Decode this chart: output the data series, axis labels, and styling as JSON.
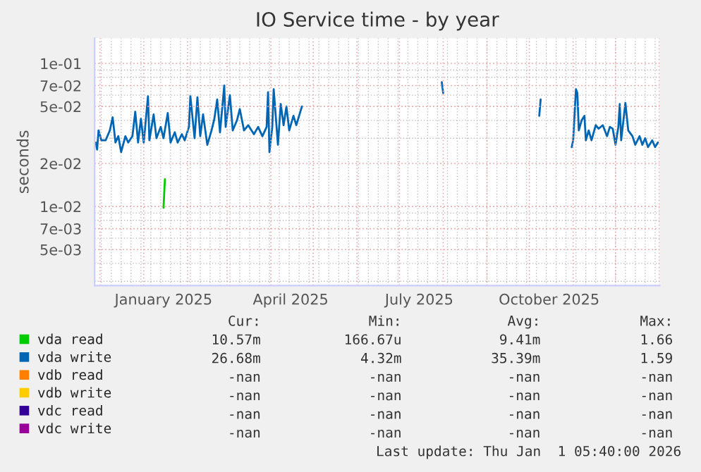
{
  "chart_data": {
    "type": "line",
    "title": "IO Service time - by year",
    "ylabel": "seconds",
    "log": "y",
    "grid": true,
    "legend": "bottom",
    "xlim": [
      "2024-11-27T05:40",
      "2026-01-01T05:40"
    ],
    "xticks": [
      {
        "value": "2025-01-15",
        "label": "January 2025"
      },
      {
        "value": "2025-04-15",
        "label": "April 2025"
      },
      {
        "value": "2025-07-15",
        "label": "July 2025"
      },
      {
        "value": "2025-10-15",
        "label": "October 2025"
      }
    ],
    "ylim": [
      0.0028,
      0.15
    ],
    "yticks": [
      {
        "value": 0.1,
        "label": "1e-01"
      },
      {
        "value": 0.07,
        "label": "7e-02"
      },
      {
        "value": 0.05,
        "label": "5e-02"
      },
      {
        "value": 0.02,
        "label": "2e-02"
      },
      {
        "value": 0.01,
        "label": "1e-02"
      },
      {
        "value": 0.007,
        "label": "7e-03"
      },
      {
        "value": 0.005,
        "label": "5e-03"
      }
    ],
    "series": [
      {
        "name": "vda read",
        "color": "#00cc00",
        "x": [
          "2025-01-15",
          "2025-01-16"
        ],
        "values": [
          0.0098,
          0.0155
        ]
      },
      {
        "name": "vda write",
        "color": "#0066b3",
        "x": [
          "2024-11-28",
          "2024-11-29",
          "2024-11-30",
          "2024-12-02",
          "2024-12-05",
          "2024-12-08",
          "2024-12-10",
          "2024-12-12",
          "2024-12-14",
          "2024-12-16",
          "2024-12-19",
          "2024-12-21",
          "2024-12-24",
          "2024-12-26",
          "2024-12-28",
          "2024-12-30",
          "2025-01-01",
          "2025-01-04",
          "2025-01-05",
          "2025-01-08",
          "2025-01-10",
          "2025-01-13",
          "2025-01-15",
          "2025-01-18",
          "2025-01-20",
          "2025-01-23",
          "2025-01-25",
          "2025-01-28",
          "2025-01-30",
          "2025-02-02",
          "2025-02-03",
          "2025-02-06",
          "2025-02-08",
          "2025-02-10",
          "2025-02-12",
          "2025-02-15",
          "2025-02-18",
          "2025-02-20",
          "2025-02-22",
          "2025-02-24",
          "2025-02-27",
          "2025-02-28",
          "2025-03-03",
          "2025-03-05",
          "2025-03-08",
          "2025-03-10",
          "2025-03-13",
          "2025-03-16",
          "2025-03-20",
          "2025-03-23",
          "2025-03-26",
          "2025-03-29",
          "2025-03-30",
          "2025-03-31",
          "2025-04-02",
          "2025-04-03",
          "2025-04-06",
          "2025-04-08",
          "2025-04-10",
          "2025-04-12",
          "2025-04-14",
          "2025-04-17",
          "2025-04-19",
          "2025-04-23",
          "2025-06-01",
          "2025-07-31",
          "2025-08-01",
          "2025-09-01",
          "2025-10-08",
          "2025-10-09",
          "2025-10-20",
          "2025-10-31",
          "2025-11-01",
          "2025-11-03",
          "2025-11-04",
          "2025-11-05",
          "2025-11-07",
          "2025-11-09",
          "2025-11-10",
          "2025-11-12",
          "2025-11-14",
          "2025-11-17",
          "2025-11-19",
          "2025-11-22",
          "2025-11-25",
          "2025-11-27",
          "2025-11-29",
          "2025-12-01",
          "2025-12-03",
          "2025-12-04",
          "2025-12-05",
          "2025-12-08",
          "2025-12-10",
          "2025-12-13",
          "2025-12-15",
          "2025-12-18",
          "2025-12-20",
          "2025-12-22",
          "2025-12-24",
          "2025-12-27",
          "2025-12-29",
          "2025-12-31"
        ],
        "values": [
          0.028,
          0.025,
          0.034,
          0.029,
          0.029,
          0.034,
          0.042,
          0.028,
          0.031,
          0.024,
          0.031,
          0.028,
          0.031,
          0.046,
          0.028,
          0.041,
          0.028,
          0.059,
          0.029,
          0.044,
          0.03,
          0.036,
          0.03,
          0.045,
          0.028,
          0.033,
          0.028,
          0.032,
          0.029,
          0.036,
          0.059,
          0.03,
          0.058,
          0.031,
          0.044,
          0.027,
          0.034,
          0.041,
          0.056,
          0.033,
          0.07,
          0.036,
          0.06,
          0.034,
          0.04,
          0.048,
          0.034,
          0.037,
          0.032,
          0.036,
          0.031,
          0.036,
          0.063,
          0.024,
          0.036,
          0.066,
          0.027,
          0.052,
          0.037,
          0.05,
          0.034,
          0.043,
          0.037,
          0.05,
          null,
          0.074,
          0.062,
          null,
          0.043,
          0.056,
          null,
          0.026,
          0.029,
          0.066,
          0.062,
          0.034,
          0.04,
          0.043,
          0.029,
          0.034,
          0.029,
          0.037,
          0.035,
          0.037,
          0.031,
          0.036,
          0.035,
          0.027,
          0.036,
          0.052,
          0.029,
          0.053,
          0.034,
          0.031,
          0.027,
          0.031,
          0.027,
          0.03,
          0.026,
          0.029,
          0.026,
          0.028
        ]
      },
      {
        "name": "vdb read",
        "color": "#ff8000"
      },
      {
        "name": "vdb write",
        "color": "#ffcc00"
      },
      {
        "name": "vdc read",
        "color": "#330099"
      },
      {
        "name": "vdc write",
        "color": "#990099"
      }
    ],
    "annotations": [
      "Cur:",
      "Min:",
      "Avg:",
      "Max:",
      "10.57m",
      "166.67u",
      "9.41m",
      "1.66",
      "26.68m",
      "4.32m",
      "35.39m",
      "1.59",
      "-nan",
      "-nan",
      "-nan",
      "-nan",
      "-nan",
      "-nan",
      "-nan",
      "-nan",
      "-nan",
      "-nan",
      "-nan",
      "-nan",
      "-nan",
      "-nan",
      "-nan",
      "-nan",
      "Last update: Thu Jan  1 05:40:00 2026"
    ]
  }
}
